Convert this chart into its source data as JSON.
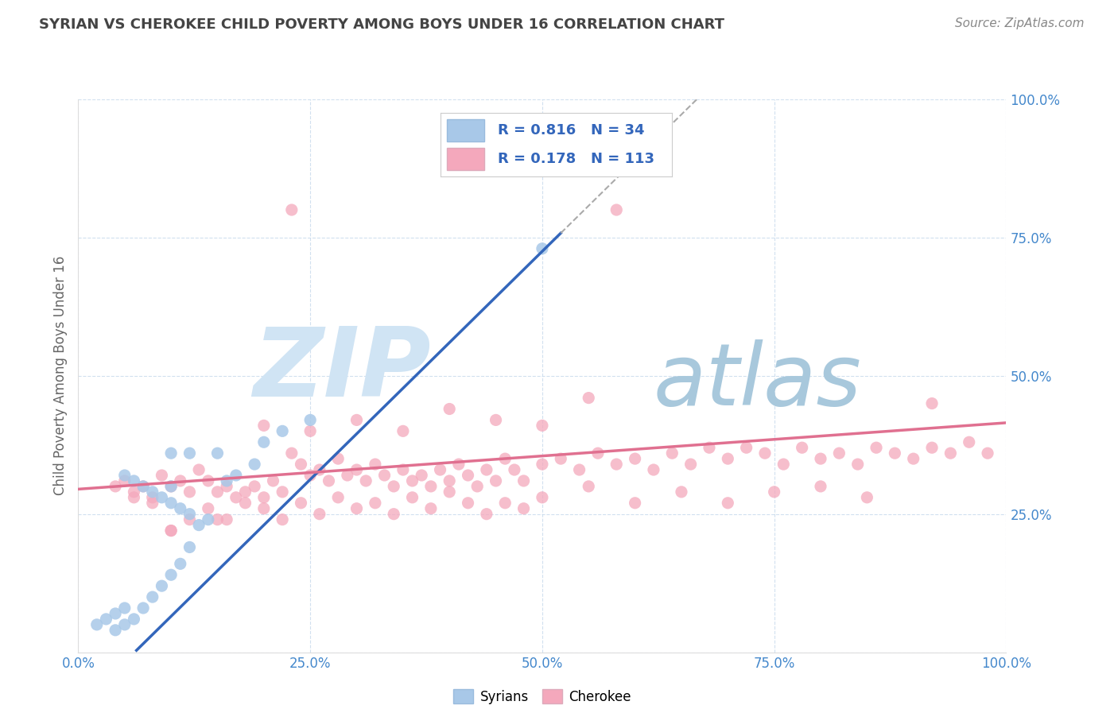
{
  "title": "SYRIAN VS CHEROKEE CHILD POVERTY AMONG BOYS UNDER 16 CORRELATION CHART",
  "source": "Source: ZipAtlas.com",
  "ylabel": "Child Poverty Among Boys Under 16",
  "xlim": [
    0,
    1.0
  ],
  "ylim": [
    0,
    1.0
  ],
  "xtick_labels": [
    "0.0%",
    "",
    "25.0%",
    "",
    "50.0%",
    "",
    "75.0%",
    "",
    "100.0%"
  ],
  "xtick_vals": [
    0,
    0.125,
    0.25,
    0.375,
    0.5,
    0.625,
    0.75,
    0.875,
    1.0
  ],
  "ytick_labels": [
    "",
    "25.0%",
    "50.0%",
    "75.0%",
    "100.0%"
  ],
  "ytick_vals": [
    0,
    0.25,
    0.5,
    0.75,
    1.0
  ],
  "legend_labels": [
    "Syrians",
    "Cherokee"
  ],
  "legend_R": [
    0.816,
    0.178
  ],
  "legend_N": [
    34,
    113
  ],
  "syrian_color": "#a8c8e8",
  "cherokee_color": "#f4a8bc",
  "syrian_line_color": "#3366bb",
  "cherokee_line_color": "#e07090",
  "watermark_zip": "ZIP",
  "watermark_atlas": "atlas",
  "watermark_color_zip": "#c8ddf0",
  "watermark_color_atlas": "#a8c4d8",
  "title_color": "#444444",
  "label_color": "#666666",
  "tick_color": "#4488cc",
  "source_color": "#888888",
  "grid_color": "#ccddee",
  "syrian_x": [
    0.02,
    0.03,
    0.04,
    0.04,
    0.05,
    0.05,
    0.05,
    0.06,
    0.06,
    0.07,
    0.07,
    0.08,
    0.08,
    0.09,
    0.09,
    0.1,
    0.1,
    0.1,
    0.11,
    0.11,
    0.12,
    0.12,
    0.13,
    0.14,
    0.15,
    0.16,
    0.17,
    0.19,
    0.2,
    0.22,
    0.25,
    0.1,
    0.12,
    0.5
  ],
  "syrian_y": [
    0.05,
    0.06,
    0.04,
    0.07,
    0.05,
    0.08,
    0.32,
    0.06,
    0.31,
    0.08,
    0.3,
    0.1,
    0.29,
    0.12,
    0.28,
    0.14,
    0.27,
    0.3,
    0.16,
    0.26,
    0.19,
    0.25,
    0.23,
    0.24,
    0.36,
    0.31,
    0.32,
    0.34,
    0.38,
    0.4,
    0.42,
    0.36,
    0.36,
    0.73
  ],
  "cherokee_x": [
    0.04,
    0.05,
    0.06,
    0.07,
    0.08,
    0.09,
    0.1,
    0.11,
    0.12,
    0.13,
    0.14,
    0.15,
    0.16,
    0.17,
    0.18,
    0.19,
    0.2,
    0.21,
    0.22,
    0.23,
    0.24,
    0.25,
    0.26,
    0.27,
    0.28,
    0.29,
    0.3,
    0.31,
    0.32,
    0.33,
    0.34,
    0.35,
    0.36,
    0.37,
    0.38,
    0.39,
    0.4,
    0.41,
    0.42,
    0.43,
    0.44,
    0.45,
    0.46,
    0.47,
    0.48,
    0.5,
    0.52,
    0.54,
    0.56,
    0.58,
    0.6,
    0.62,
    0.64,
    0.66,
    0.68,
    0.7,
    0.72,
    0.74,
    0.76,
    0.78,
    0.8,
    0.82,
    0.84,
    0.86,
    0.88,
    0.9,
    0.92,
    0.94,
    0.96,
    0.98,
    0.06,
    0.08,
    0.1,
    0.12,
    0.14,
    0.16,
    0.18,
    0.2,
    0.22,
    0.24,
    0.26,
    0.28,
    0.3,
    0.32,
    0.34,
    0.36,
    0.38,
    0.4,
    0.42,
    0.44,
    0.46,
    0.48,
    0.5,
    0.55,
    0.6,
    0.65,
    0.7,
    0.75,
    0.8,
    0.85,
    0.23,
    0.58,
    0.4,
    0.55,
    0.2,
    0.25,
    0.3,
    0.35,
    0.45,
    0.5,
    0.1,
    0.15,
    0.92
  ],
  "cherokee_y": [
    0.3,
    0.31,
    0.29,
    0.3,
    0.28,
    0.32,
    0.3,
    0.31,
    0.29,
    0.33,
    0.31,
    0.29,
    0.3,
    0.28,
    0.29,
    0.3,
    0.28,
    0.31,
    0.29,
    0.36,
    0.34,
    0.32,
    0.33,
    0.31,
    0.35,
    0.32,
    0.33,
    0.31,
    0.34,
    0.32,
    0.3,
    0.33,
    0.31,
    0.32,
    0.3,
    0.33,
    0.31,
    0.34,
    0.32,
    0.3,
    0.33,
    0.31,
    0.35,
    0.33,
    0.31,
    0.34,
    0.35,
    0.33,
    0.36,
    0.34,
    0.35,
    0.33,
    0.36,
    0.34,
    0.37,
    0.35,
    0.37,
    0.36,
    0.34,
    0.37,
    0.35,
    0.36,
    0.34,
    0.37,
    0.36,
    0.35,
    0.37,
    0.36,
    0.38,
    0.36,
    0.28,
    0.27,
    0.22,
    0.24,
    0.26,
    0.24,
    0.27,
    0.26,
    0.24,
    0.27,
    0.25,
    0.28,
    0.26,
    0.27,
    0.25,
    0.28,
    0.26,
    0.29,
    0.27,
    0.25,
    0.27,
    0.26,
    0.28,
    0.3,
    0.27,
    0.29,
    0.27,
    0.29,
    0.3,
    0.28,
    0.8,
    0.8,
    0.44,
    0.46,
    0.41,
    0.4,
    0.42,
    0.4,
    0.42,
    0.41,
    0.22,
    0.24,
    0.45
  ]
}
